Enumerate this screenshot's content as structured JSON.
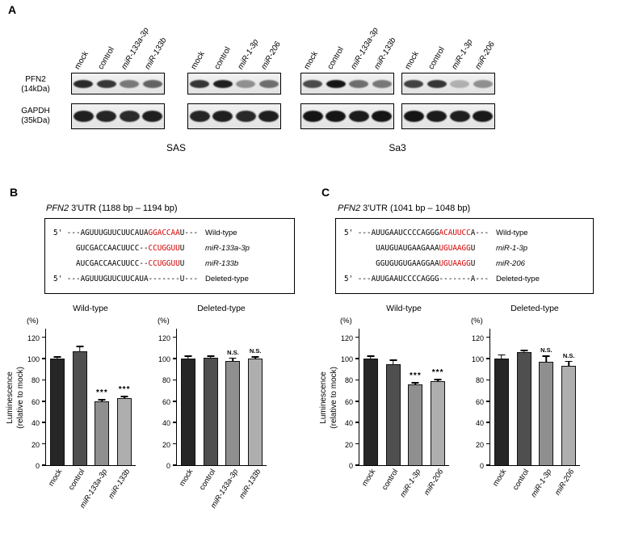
{
  "colors": {
    "red_highlight": "#d40000",
    "bar_colors": [
      "#262626",
      "#4f4f4f",
      "#8f8f8f",
      "#aeaeae"
    ],
    "band_color": "#0a0a0a"
  },
  "panel_a": {
    "letter": "A",
    "row_labels": [
      {
        "line1": "PFN2",
        "line2": "(14kDa)"
      },
      {
        "line1": "GAPDH",
        "line2": "(35kDa)"
      }
    ],
    "cell_lines": [
      {
        "name": "SAS",
        "groups": [
          {
            "lanes": [
              {
                "label": "mock",
                "italic": false
              },
              {
                "label": "control",
                "italic": false
              },
              {
                "label": "miR-133a-3p",
                "italic": true
              },
              {
                "label": "miR-133b",
                "italic": true
              }
            ],
            "pfn2_band_intensity": [
              0.85,
              0.8,
              0.5,
              0.6
            ],
            "gapdh_band_intensity": [
              0.9,
              0.88,
              0.85,
              0.9
            ]
          },
          {
            "lanes": [
              {
                "label": "mock",
                "italic": false
              },
              {
                "label": "control",
                "italic": false
              },
              {
                "label": "miR-1-3p",
                "italic": true
              },
              {
                "label": "miR-206",
                "italic": true
              }
            ],
            "pfn2_band_intensity": [
              0.8,
              0.9,
              0.4,
              0.55
            ],
            "gapdh_band_intensity": [
              0.88,
              0.9,
              0.86,
              0.9
            ]
          }
        ]
      },
      {
        "name": "Sa3",
        "groups": [
          {
            "lanes": [
              {
                "label": "mock",
                "italic": false
              },
              {
                "label": "control",
                "italic": false
              },
              {
                "label": "miR-133a-3p",
                "italic": true
              },
              {
                "label": "miR-133b",
                "italic": true
              }
            ],
            "pfn2_band_intensity": [
              0.7,
              0.95,
              0.55,
              0.5
            ],
            "gapdh_band_intensity": [
              0.95,
              0.95,
              0.92,
              0.95
            ]
          },
          {
            "lanes": [
              {
                "label": "mock",
                "italic": false
              },
              {
                "label": "control",
                "italic": false
              },
              {
                "label": "miR-1-3p",
                "italic": true
              },
              {
                "label": "miR-206",
                "italic": true
              }
            ],
            "pfn2_band_intensity": [
              0.75,
              0.8,
              0.25,
              0.4
            ],
            "gapdh_band_intensity": [
              0.95,
              0.92,
              0.9,
              0.93
            ]
          }
        ]
      }
    ]
  },
  "panel_b": {
    "letter": "B",
    "title": {
      "gene": "PFN2",
      "rest": " 3'UTR (1188 bp – 1194 bp)"
    },
    "alignment": [
      {
        "segments": [
          {
            "text": "5' ---AGUUUGUUCUUCAUA",
            "red": false
          },
          {
            "text": "GGACCAA",
            "red": true
          },
          {
            "text": "U---",
            "red": false
          }
        ],
        "label": "Wild-type",
        "italic": false
      },
      {
        "segments": [
          {
            "text": "     GUCGACCAACUUCC--",
            "red": false
          },
          {
            "text": "CCUGGUU",
            "red": true
          },
          {
            "text": "U",
            "red": false
          }
        ],
        "label": "miR-133a-3p",
        "italic": true
      },
      {
        "segments": [
          {
            "text": "     AUCGACCAACUUCC--",
            "red": false
          },
          {
            "text": "CCUGGUU",
            "red": true
          },
          {
            "text": "U",
            "red": false
          }
        ],
        "label": "miR-133b",
        "italic": true
      },
      {
        "segments": [
          {
            "text": "5' ---AGUUUGUUCUUCAUA-------U---",
            "red": false
          }
        ],
        "label": "Deleted-type",
        "italic": false
      }
    ]
  },
  "panel_c": {
    "letter": "C",
    "title": {
      "gene": "PFN2",
      "rest": " 3'UTR (1041 bp – 1048 bp)"
    },
    "alignment": [
      {
        "segments": [
          {
            "text": "5' ---AUUGAAUCCCCAGGG",
            "red": false
          },
          {
            "text": "ACAUUCC",
            "red": true
          },
          {
            "text": "A---",
            "red": false
          }
        ],
        "label": "Wild-type",
        "italic": false
      },
      {
        "segments": [
          {
            "text": "       UAUGUAUGAAGAAA",
            "red": false
          },
          {
            "text": "UGUAAGG",
            "red": true
          },
          {
            "text": "U",
            "red": false
          }
        ],
        "label": "miR-1-3p",
        "italic": true
      },
      {
        "segments": [
          {
            "text": "       GGUGUGUGAAGGAA",
            "red": false
          },
          {
            "text": "UGUAAGG",
            "red": true
          },
          {
            "text": "U",
            "red": false
          }
        ],
        "label": "miR-206",
        "italic": true
      },
      {
        "segments": [
          {
            "text": "5' ---AUUGAAUCCCCAGGG-------A---",
            "red": false
          }
        ],
        "label": "Deleted-type",
        "italic": false
      }
    ]
  },
  "chart_data": [
    {
      "id": "B-wild-type",
      "panel": "B",
      "type": "bar",
      "title": "Wild-type",
      "unit": "(%)",
      "ylabel": "Luminescence (relative to mock)",
      "ylabel_lines": [
        "Luminescence",
        "(relative to mock)"
      ],
      "ylim": [
        0,
        129
      ],
      "yticks": [
        0,
        20,
        40,
        60,
        80,
        100,
        120
      ],
      "categories": [
        "mock",
        "control",
        "miR-133a-3p",
        "miR-133b"
      ],
      "italic_flags": [
        false,
        false,
        true,
        true
      ],
      "values": [
        100,
        107,
        60,
        63
      ],
      "errors": [
        2,
        5,
        2,
        2
      ],
      "annotations": [
        "",
        "",
        "***",
        "***"
      ]
    },
    {
      "id": "B-deleted-type",
      "panel": "B",
      "type": "bar",
      "title": "Deleted-type",
      "unit": "(%)",
      "ylabel": "",
      "ylabel_lines": [],
      "ylim": [
        0,
        129
      ],
      "yticks": [
        0,
        20,
        40,
        60,
        80,
        100,
        120
      ],
      "categories": [
        "mock",
        "control",
        "miR-133a-3p",
        "miR-133b"
      ],
      "italic_flags": [
        false,
        false,
        true,
        true
      ],
      "values": [
        100,
        101,
        98,
        100
      ],
      "errors": [
        3,
        2,
        3,
        2
      ],
      "annotations": [
        "",
        "",
        "N.S.",
        "N.S."
      ]
    },
    {
      "id": "C-wild-type",
      "panel": "C",
      "type": "bar",
      "title": "Wild-type",
      "unit": "(%)",
      "ylabel": "Luminescence (relative to mock)",
      "ylabel_lines": [
        "Luminescence",
        "(relative to mock)"
      ],
      "ylim": [
        0,
        129
      ],
      "yticks": [
        0,
        20,
        40,
        60,
        80,
        100,
        120
      ],
      "categories": [
        "mock",
        "control",
        "miR-1-3p",
        "miR-206"
      ],
      "italic_flags": [
        false,
        false,
        true,
        true
      ],
      "values": [
        100,
        95,
        76,
        79
      ],
      "errors": [
        3,
        4,
        2,
        2
      ],
      "annotations": [
        "",
        "",
        "***",
        "***"
      ]
    },
    {
      "id": "C-deleted-type",
      "panel": "C",
      "type": "bar",
      "title": "Deleted-type",
      "unit": "(%)",
      "ylabel": "",
      "ylabel_lines": [],
      "ylim": [
        0,
        129
      ],
      "yticks": [
        0,
        20,
        40,
        60,
        80,
        100,
        120
      ],
      "categories": [
        "mock",
        "control",
        "miR-1-3p",
        "miR-206"
      ],
      "italic_flags": [
        false,
        false,
        true,
        true
      ],
      "values": [
        100,
        106,
        97,
        93
      ],
      "errors": [
        4,
        2,
        6,
        5
      ],
      "annotations": [
        "",
        "",
        "N.S.",
        "N.S."
      ]
    }
  ]
}
